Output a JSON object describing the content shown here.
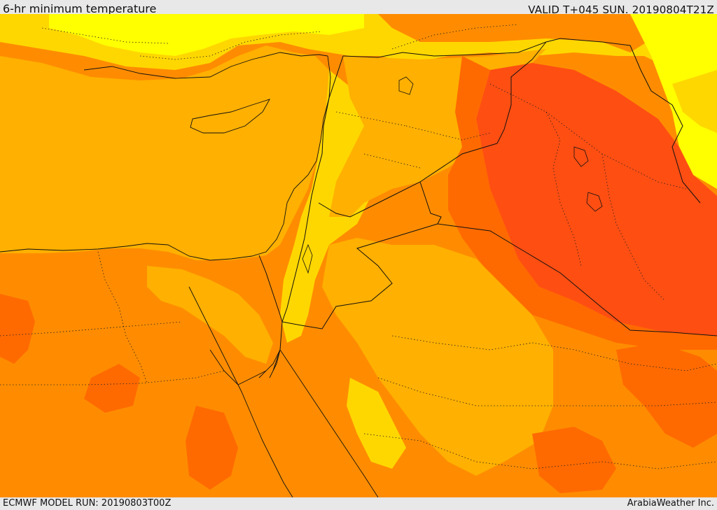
{
  "header": {
    "title": "6-hr minimum temperature",
    "valid": "VALID T+045 SUN. 20190804T21Z"
  },
  "footer": {
    "model_run": "ECMWF MODEL RUN: 20190803T00Z",
    "credit": "ArabiaWeather Inc."
  },
  "map": {
    "region": "eastern-mediterranean-middle-east",
    "palette": {
      "yellow": "#ffff00",
      "light_yellow_orange": "#ffd700",
      "amber": "#ffb000",
      "orange": "#ff8c00",
      "dark_orange": "#ff6a00",
      "red_orange": "#ff4e12"
    }
  }
}
